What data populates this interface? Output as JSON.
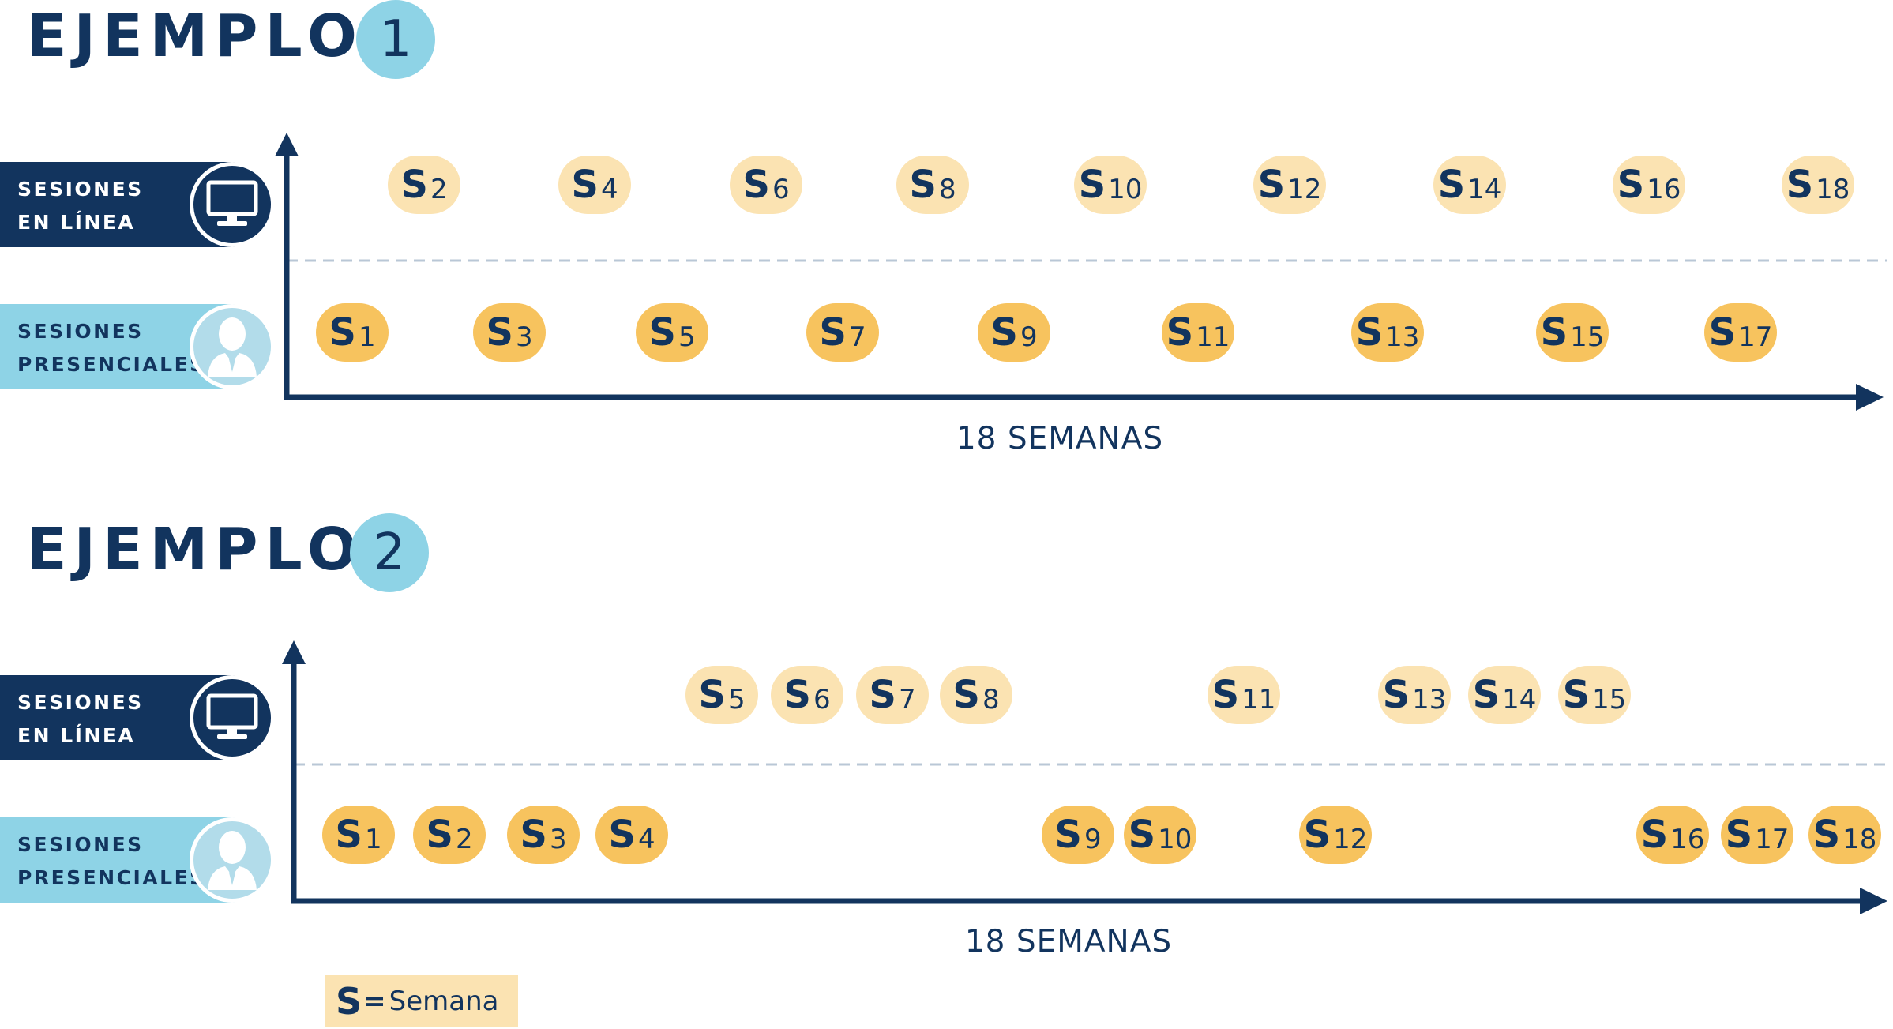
{
  "legend": {
    "symbol": "S",
    "equals": "=",
    "text": "Semana"
  },
  "examples": [
    {
      "title": "EJEMPLO",
      "number": "1",
      "online_label": "SESIONES\nEN LÍNEA",
      "presential_label": "SESIONES\nPRESENCIALES",
      "axis_label": "18 SEMANAS",
      "online_weeks": [
        2,
        4,
        6,
        8,
        10,
        12,
        14,
        16,
        18
      ],
      "presential_weeks": [
        1,
        3,
        5,
        7,
        9,
        11,
        13,
        15,
        17
      ]
    },
    {
      "title": "EJEMPLO",
      "number": "2",
      "online_label": "SESIONES\nEN LÍNEA",
      "presential_label": "SESIONES\nPRESENCIALES",
      "axis_label": "18 SEMANAS",
      "online_weeks": [
        5,
        6,
        7,
        8,
        11,
        13,
        14,
        15
      ],
      "presential_weeks": [
        1,
        2,
        3,
        4,
        9,
        10,
        12,
        16,
        17,
        18
      ]
    }
  ],
  "icons": {
    "online": "monitor-icon",
    "presential": "person-icon"
  },
  "colors": {
    "navy": "#12345e",
    "light_blue": "#8ed3e6",
    "online_badge": "#fbe3b2",
    "presential_badge": "#f7c35e",
    "divider": "#b9c7d6"
  }
}
